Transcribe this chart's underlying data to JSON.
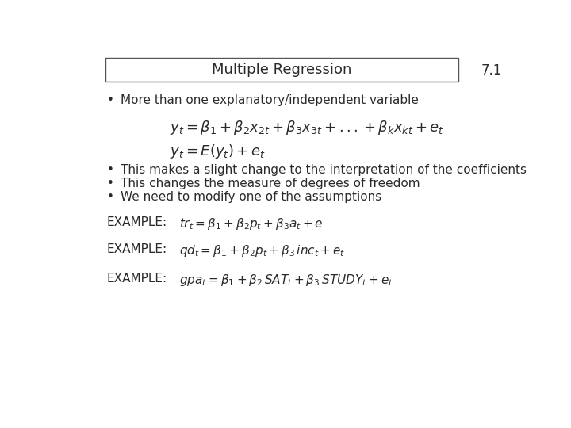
{
  "background_color": "#ffffff",
  "title_box_text": "Multiple Regression",
  "slide_number": "7.1",
  "bullet_points": [
    "More than one explanatory/independent variable",
    "This makes a slight change to the interpretation of the coefficients",
    "This changes the measure of degrees of freedom",
    "We need to modify one of the assumptions"
  ],
  "eq1": "$y_t = \\beta_1 + \\beta_2 x_{2t} + \\beta_3 x_{3t} + ...+ \\beta_k x_{kt} + e_t$",
  "eq2": "$y_t = E(y_t) + e_t$",
  "example1_label": "EXAMPLE:",
  "example1_eq": "$tr_t = \\beta_1 + \\beta_2 p_t + \\beta_3 a_t + e$",
  "example2_label": "EXAMPLE:",
  "example2_eq": "$qd_t = \\beta_1 + \\beta_2 p_t + \\beta_3\\, inc_t + e_t$",
  "example3_label": "EXAMPLE:",
  "example3_eq": "$gpa_t = \\beta_1 + \\beta_2\\, SAT_t + \\beta_3\\, STUDY_t + e_t$",
  "text_color": "#2a2a2a",
  "box_color": "#555555",
  "title_fontsize": 13,
  "body_fontsize": 11,
  "eq_fontsize": 13,
  "example_fontsize": 11,
  "slide_num_fontsize": 12
}
